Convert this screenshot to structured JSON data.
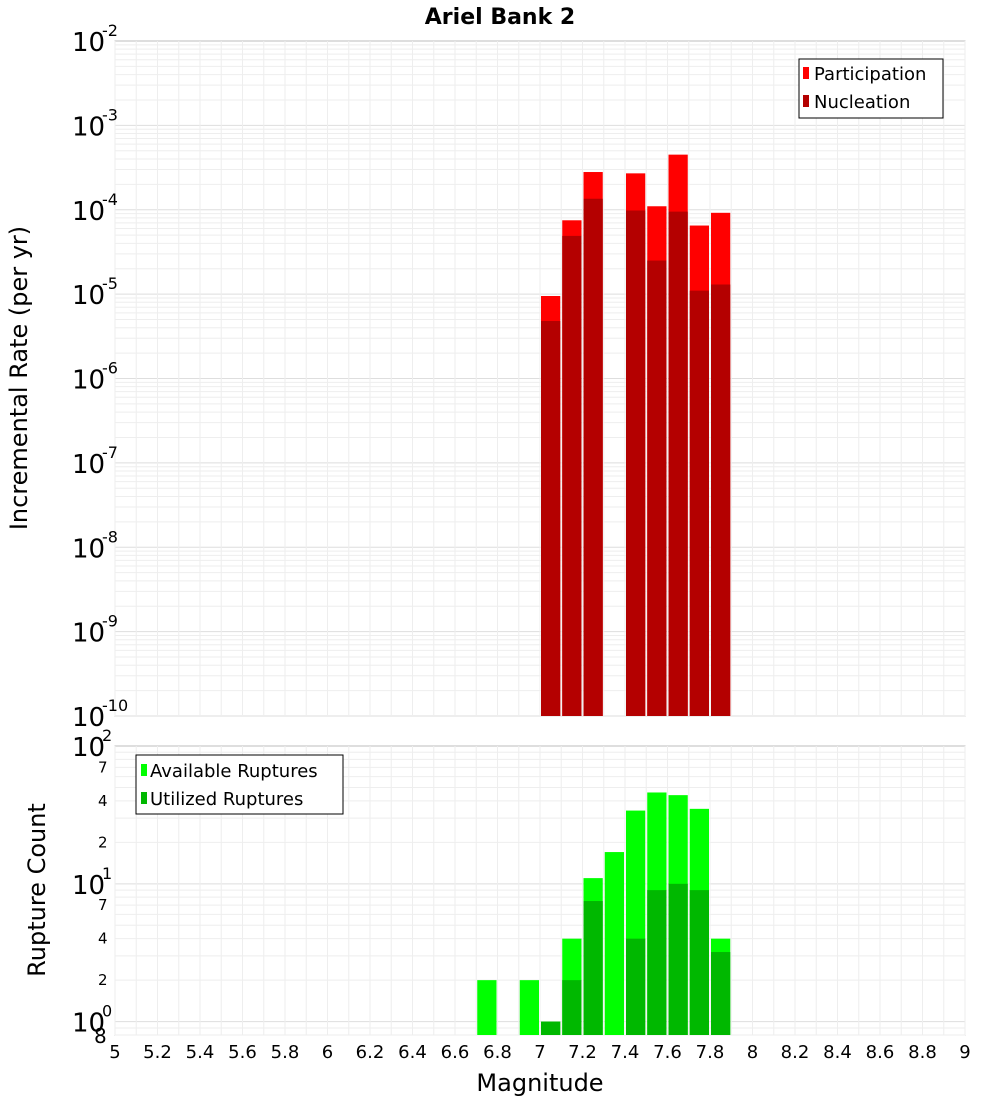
{
  "chart_data": [
    {
      "type": "bar",
      "title": "Ariel Bank 2",
      "xlabel": "",
      "ylabel": "Incremental Rate (per yr)",
      "yscale": "log",
      "xlim": [
        5,
        9
      ],
      "ylim": [
        1e-10,
        0.01
      ],
      "y_tick_bases": [
        "10",
        "10",
        "10",
        "10",
        "10",
        "10",
        "10",
        "10",
        "10"
      ],
      "y_tick_exponents": [
        "-10",
        "-9",
        "-8",
        "-7",
        "-6",
        "-5",
        "-4",
        "-3",
        "-2"
      ],
      "legend_position": "top-right",
      "grid": true,
      "x": [
        7.05,
        7.15,
        7.25,
        7.45,
        7.55,
        7.65,
        7.75,
        7.85
      ],
      "series": [
        {
          "name": "Participation",
          "color": "#ff0000",
          "values": [
            9.5e-06,
            7.5e-05,
            0.00028,
            0.00027,
            0.00011,
            0.00045,
            6.5e-05,
            9.2e-05
          ]
        },
        {
          "name": "Nucleation",
          "color": "#b40000",
          "values": [
            4.8e-06,
            4.9e-05,
            0.000135,
            9.8e-05,
            2.5e-05,
            9.5e-05,
            1.1e-05,
            1.3e-05
          ]
        }
      ]
    },
    {
      "type": "bar",
      "title": "",
      "xlabel": "Magnitude",
      "ylabel": "Rupture Count",
      "yscale": "log",
      "xlim": [
        5,
        9
      ],
      "ylim": [
        0.8,
        100
      ],
      "x_ticks": [
        "5",
        "5.2",
        "5.4",
        "5.6",
        "5.8",
        "6",
        "6.2",
        "6.4",
        "6.6",
        "6.8",
        "7",
        "7.2",
        "7.4",
        "7.6",
        "7.8",
        "8",
        "8.2",
        "8.4",
        "8.6",
        "8.8",
        "9"
      ],
      "y_tick_bases": [
        "10",
        "10",
        "10"
      ],
      "y_tick_exponents": [
        "0",
        "1",
        "2"
      ],
      "y_minor_ticks": [
        {
          "value": 0.8,
          "label": "8"
        },
        {
          "value": 2,
          "label": "2"
        },
        {
          "value": 4,
          "label": "4"
        },
        {
          "value": 7,
          "label": "7"
        },
        {
          "value": 20,
          "label": "2"
        },
        {
          "value": 40,
          "label": "4"
        },
        {
          "value": 70,
          "label": "7"
        }
      ],
      "legend_position": "top-left",
      "grid": true,
      "x": [
        6.75,
        6.95,
        7.05,
        7.15,
        7.25,
        7.35,
        7.45,
        7.55,
        7.65,
        7.75,
        7.85
      ],
      "series": [
        {
          "name": "Available Ruptures",
          "color": "#00ff00",
          "values": [
            2,
            2,
            1,
            4,
            11,
            17,
            34,
            46,
            44,
            35,
            4
          ]
        },
        {
          "name": "Utilized Ruptures",
          "color": "#00b800",
          "values": [
            null,
            null,
            1,
            2,
            7.5,
            null,
            4,
            9,
            10,
            9,
            3.2
          ]
        }
      ]
    }
  ]
}
